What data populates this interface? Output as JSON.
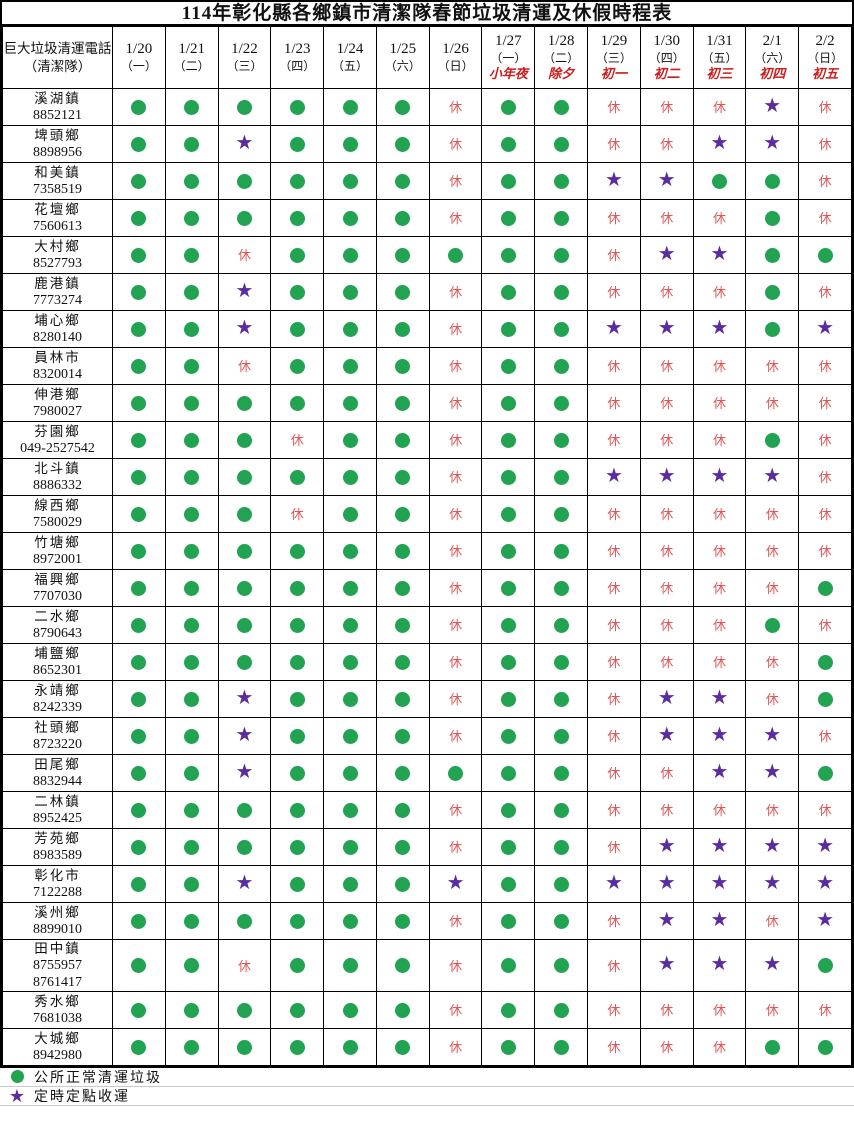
{
  "title": "114年彰化縣各鄉鎮市清潔隊春節垃圾清運及休假時程表",
  "corner_header": {
    "line1": "巨大垃圾清運電話",
    "line2": "（清潔隊）"
  },
  "symbols": {
    "dot": "●",
    "star": "★",
    "rest": "休"
  },
  "colors": {
    "dot": "#21a351",
    "star": "#5a2ca0",
    "rest": "#e15757",
    "holiday": "#cc1c1c"
  },
  "columns": [
    {
      "date": "1/20",
      "weekday": "（一）",
      "holiday": ""
    },
    {
      "date": "1/21",
      "weekday": "（二）",
      "holiday": ""
    },
    {
      "date": "1/22",
      "weekday": "（三）",
      "holiday": ""
    },
    {
      "date": "1/23",
      "weekday": "（四）",
      "holiday": ""
    },
    {
      "date": "1/24",
      "weekday": "（五）",
      "holiday": ""
    },
    {
      "date": "1/25",
      "weekday": "（六）",
      "holiday": ""
    },
    {
      "date": "1/26",
      "weekday": "（日）",
      "holiday": ""
    },
    {
      "date": "1/27",
      "weekday": "（一）",
      "holiday": "小年夜"
    },
    {
      "date": "1/28",
      "weekday": "（二）",
      "holiday": "除夕"
    },
    {
      "date": "1/29",
      "weekday": "（三）",
      "holiday": "初一"
    },
    {
      "date": "1/30",
      "weekday": "（四）",
      "holiday": "初二"
    },
    {
      "date": "1/31",
      "weekday": "（五）",
      "holiday": "初三"
    },
    {
      "date": "2/1",
      "weekday": "（六）",
      "holiday": "初四"
    },
    {
      "date": "2/2",
      "weekday": "（日）",
      "holiday": "初五"
    }
  ],
  "rows": [
    {
      "name": "溪湖鎮",
      "phones": [
        "8852121"
      ],
      "cells": [
        "dot",
        "dot",
        "dot",
        "dot",
        "dot",
        "dot",
        "rest",
        "dot",
        "dot",
        "rest",
        "rest",
        "rest",
        "star",
        "rest"
      ]
    },
    {
      "name": "埤頭鄉",
      "phones": [
        "8898956"
      ],
      "cells": [
        "dot",
        "dot",
        "star",
        "dot",
        "dot",
        "dot",
        "rest",
        "dot",
        "dot",
        "rest",
        "rest",
        "star",
        "star",
        "rest"
      ]
    },
    {
      "name": "和美鎮",
      "phones": [
        "7358519"
      ],
      "cells": [
        "dot",
        "dot",
        "dot",
        "dot",
        "dot",
        "dot",
        "rest",
        "dot",
        "dot",
        "star",
        "star",
        "dot",
        "dot",
        "rest"
      ]
    },
    {
      "name": "花壇鄉",
      "phones": [
        "7560613"
      ],
      "cells": [
        "dot",
        "dot",
        "dot",
        "dot",
        "dot",
        "dot",
        "rest",
        "dot",
        "dot",
        "rest",
        "rest",
        "rest",
        "dot",
        "rest"
      ]
    },
    {
      "name": "大村鄉",
      "phones": [
        "8527793"
      ],
      "cells": [
        "dot",
        "dot",
        "rest",
        "dot",
        "dot",
        "dot",
        "dot",
        "dot",
        "dot",
        "rest",
        "star",
        "star",
        "dot",
        "dot"
      ]
    },
    {
      "name": "鹿港鎮",
      "phones": [
        "7773274"
      ],
      "cells": [
        "dot",
        "dot",
        "star",
        "dot",
        "dot",
        "dot",
        "rest",
        "dot",
        "dot",
        "rest",
        "rest",
        "rest",
        "dot",
        "rest"
      ]
    },
    {
      "name": "埔心鄉",
      "phones": [
        "8280140"
      ],
      "cells": [
        "dot",
        "dot",
        "star",
        "dot",
        "dot",
        "dot",
        "rest",
        "dot",
        "dot",
        "star",
        "star",
        "star",
        "dot",
        "star"
      ]
    },
    {
      "name": "員林市",
      "phones": [
        "8320014"
      ],
      "cells": [
        "dot",
        "dot",
        "rest",
        "dot",
        "dot",
        "dot",
        "rest",
        "dot",
        "dot",
        "rest",
        "rest",
        "rest",
        "rest",
        "rest"
      ]
    },
    {
      "name": "伸港鄉",
      "phones": [
        "7980027"
      ],
      "cells": [
        "dot",
        "dot",
        "dot",
        "dot",
        "dot",
        "dot",
        "rest",
        "dot",
        "dot",
        "rest",
        "rest",
        "rest",
        "rest",
        "rest"
      ]
    },
    {
      "name": "芬園鄉",
      "phones": [
        "049-2527542"
      ],
      "cells": [
        "dot",
        "dot",
        "dot",
        "rest",
        "dot",
        "dot",
        "rest",
        "dot",
        "dot",
        "rest",
        "rest",
        "rest",
        "dot",
        "rest"
      ]
    },
    {
      "name": "北斗鎮",
      "phones": [
        "8886332"
      ],
      "cells": [
        "dot",
        "dot",
        "dot",
        "dot",
        "dot",
        "dot",
        "rest",
        "dot",
        "dot",
        "star",
        "star",
        "star",
        "star",
        "rest"
      ]
    },
    {
      "name": "線西鄉",
      "phones": [
        "7580029"
      ],
      "cells": [
        "dot",
        "dot",
        "dot",
        "rest",
        "dot",
        "dot",
        "rest",
        "dot",
        "dot",
        "rest",
        "rest",
        "rest",
        "rest",
        "rest"
      ]
    },
    {
      "name": "竹塘鄉",
      "phones": [
        "8972001"
      ],
      "cells": [
        "dot",
        "dot",
        "dot",
        "dot",
        "dot",
        "dot",
        "rest",
        "dot",
        "dot",
        "rest",
        "rest",
        "rest",
        "rest",
        "rest"
      ]
    },
    {
      "name": "福興鄉",
      "phones": [
        "7707030"
      ],
      "cells": [
        "dot",
        "dot",
        "dot",
        "dot",
        "dot",
        "dot",
        "rest",
        "dot",
        "dot",
        "rest",
        "rest",
        "rest",
        "rest",
        "dot"
      ]
    },
    {
      "name": "二水鄉",
      "phones": [
        "8790643"
      ],
      "cells": [
        "dot",
        "dot",
        "dot",
        "dot",
        "dot",
        "dot",
        "rest",
        "dot",
        "dot",
        "rest",
        "rest",
        "rest",
        "dot",
        "rest"
      ]
    },
    {
      "name": "埔鹽鄉",
      "phones": [
        "8652301"
      ],
      "cells": [
        "dot",
        "dot",
        "dot",
        "dot",
        "dot",
        "dot",
        "rest",
        "dot",
        "dot",
        "rest",
        "rest",
        "rest",
        "rest",
        "dot"
      ]
    },
    {
      "name": "永靖鄉",
      "phones": [
        "8242339"
      ],
      "cells": [
        "dot",
        "dot",
        "star",
        "dot",
        "dot",
        "dot",
        "rest",
        "dot",
        "dot",
        "rest",
        "star",
        "star",
        "rest",
        "dot"
      ]
    },
    {
      "name": "社頭鄉",
      "phones": [
        "8723220"
      ],
      "cells": [
        "dot",
        "dot",
        "star",
        "dot",
        "dot",
        "dot",
        "rest",
        "dot",
        "dot",
        "rest",
        "star",
        "star",
        "star",
        "rest"
      ]
    },
    {
      "name": "田尾鄉",
      "phones": [
        "8832944"
      ],
      "cells": [
        "dot",
        "dot",
        "star",
        "dot",
        "dot",
        "dot",
        "dot",
        "dot",
        "dot",
        "rest",
        "rest",
        "star",
        "star",
        "dot"
      ]
    },
    {
      "name": "二林鎮",
      "phones": [
        "8952425"
      ],
      "cells": [
        "dot",
        "dot",
        "dot",
        "dot",
        "dot",
        "dot",
        "rest",
        "dot",
        "dot",
        "rest",
        "rest",
        "rest",
        "rest",
        "rest"
      ]
    },
    {
      "name": "芳苑鄉",
      "phones": [
        "8983589"
      ],
      "cells": [
        "dot",
        "dot",
        "dot",
        "dot",
        "dot",
        "dot",
        "rest",
        "dot",
        "dot",
        "rest",
        "star",
        "star",
        "star",
        "star"
      ]
    },
    {
      "name": "彰化市",
      "phones": [
        "7122288"
      ],
      "cells": [
        "dot",
        "dot",
        "star",
        "dot",
        "dot",
        "dot",
        "star",
        "dot",
        "dot",
        "star",
        "star",
        "star",
        "star",
        "star"
      ]
    },
    {
      "name": "溪州鄉",
      "phones": [
        "8899010"
      ],
      "cells": [
        "dot",
        "dot",
        "dot",
        "dot",
        "dot",
        "dot",
        "rest",
        "dot",
        "dot",
        "rest",
        "star",
        "star",
        "rest",
        "star"
      ]
    },
    {
      "name": "田中鎮",
      "phones": [
        "8755957",
        "8761417"
      ],
      "cells": [
        "dot",
        "dot",
        "rest",
        "dot",
        "dot",
        "dot",
        "rest",
        "dot",
        "dot",
        "rest",
        "star",
        "star",
        "star",
        "dot"
      ]
    },
    {
      "name": "秀水鄉",
      "phones": [
        "7681038"
      ],
      "cells": [
        "dot",
        "dot",
        "dot",
        "dot",
        "dot",
        "dot",
        "rest",
        "dot",
        "dot",
        "rest",
        "rest",
        "rest",
        "rest",
        "rest"
      ]
    },
    {
      "name": "大城鄉",
      "phones": [
        "8942980"
      ],
      "cells": [
        "dot",
        "dot",
        "dot",
        "dot",
        "dot",
        "dot",
        "rest",
        "dot",
        "dot",
        "rest",
        "rest",
        "rest",
        "dot",
        "dot"
      ]
    }
  ],
  "legend": [
    {
      "symbol": "dot",
      "label": "公所正常清運垃圾"
    },
    {
      "symbol": "star",
      "label": "定時定點收運"
    }
  ]
}
